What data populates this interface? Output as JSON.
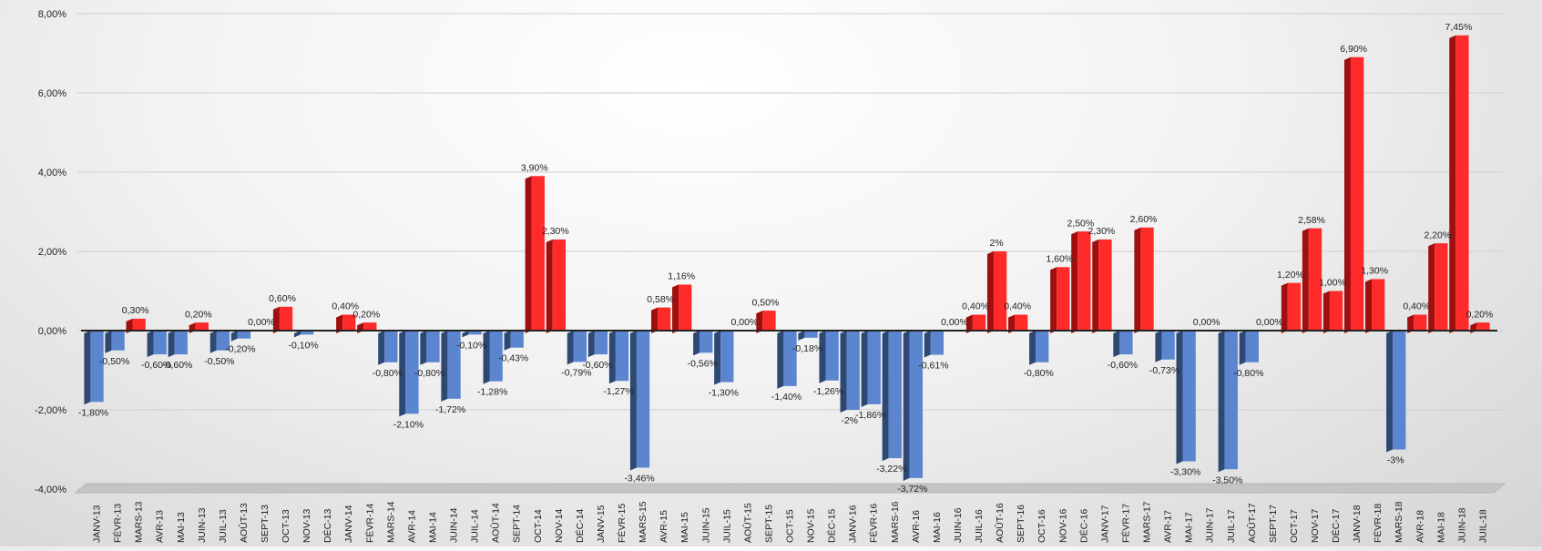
{
  "colors": {
    "positive_front": "#ff2a2a",
    "positive_side": "#a00f0f",
    "negative_front": "#5b86cf",
    "negative_side": "#2c4873",
    "zero_line": "#222222",
    "floor": "#c4c4c4"
  },
  "chart_data": {
    "type": "bar",
    "title": "",
    "xlabel": "",
    "ylabel": "",
    "ylim": [
      -4,
      8
    ],
    "yticks": [
      -4,
      -2,
      0,
      2,
      4,
      6,
      8
    ],
    "ytick_labels": [
      "-4,00%",
      "-2,00%",
      "0,00%",
      "2,00%",
      "4,00%",
      "6,00%",
      "8,00%"
    ],
    "grid": true,
    "categories": [
      "JANV-13",
      "FÉVR-13",
      "MARS-13",
      "AVR-13",
      "MAI-13",
      "JUIN-13",
      "JUIL-13",
      "AOÛT-13",
      "SEPT-13",
      "OCT-13",
      "NOV-13",
      "DÉC-13",
      "JANV-14",
      "FÉVR-14",
      "MARS-14",
      "AVR-14",
      "MAI-14",
      "JUIN-14",
      "JUIL-14",
      "AOÛT-14",
      "SEPT-14",
      "OCT-14",
      "NOV-14",
      "DÉC-14",
      "JANV-15",
      "FÉVR-15",
      "MARS-15",
      "AVR-15",
      "MAI-15",
      "JUIN-15",
      "JUIL-15",
      "AOÛT-15",
      "SEPT-15",
      "OCT-15",
      "NOV-15",
      "DÉC-15",
      "JANV-16",
      "FÉVR-16",
      "MARS-16",
      "AVR-16",
      "MAI-16",
      "JUIN-16",
      "JUIL-16",
      "AOÛT-16",
      "SEPT-16",
      "OCT-16",
      "NOV-16",
      "DÉC-16",
      "JANV-17",
      "FÉVR-17",
      "MARS-17",
      "AVR-17",
      "MAI-17",
      "JUIN-17",
      "JUIL-17",
      "AOÛT-17",
      "SEPT-17",
      "OCT-17",
      "NOV-17",
      "DÉC-17",
      "JANV-18",
      "FÉVR-18",
      "MARS-18",
      "AVR-18",
      "MAI-18",
      "JUIN-18",
      "JUIL-18"
    ],
    "values": [
      -1.8,
      -0.5,
      0.3,
      -0.6,
      -0.6,
      0.2,
      -0.5,
      -0.2,
      0,
      0.6,
      -0.1,
      0,
      0.4,
      0.2,
      -0.8,
      -2.1,
      -0.8,
      -1.72,
      -0.1,
      -1.28,
      -0.43,
      3.9,
      2.3,
      -0.79,
      -0.6,
      -1.27,
      -3.46,
      0.58,
      1.16,
      -0.56,
      -1.3,
      0,
      0.5,
      -1.4,
      -0.18,
      -1.26,
      -2,
      -1.86,
      -3.22,
      -3.72,
      -0.61,
      0,
      0.4,
      2,
      0.4,
      -0.8,
      1.6,
      2.5,
      2.3,
      -0.6,
      2.6,
      -0.73,
      -3.3,
      0,
      -3.5,
      -0.8,
      0,
      1.2,
      2.58,
      1,
      6.9,
      1.3,
      -3,
      0.4,
      2.2,
      7.45,
      0.2
    ],
    "data_labels": [
      "-1,80%",
      "-0,50%",
      "0,30%",
      "-0,60%",
      "-0,60%",
      "0,20%",
      "-0,50%",
      "-0,20%",
      "0,00%",
      "0,60%",
      "-0,10%",
      "",
      "0,40%",
      "0,20%",
      "-0,80%",
      "-2,10%",
      "-0,80%",
      "-1,72%",
      "-0,10%",
      "-1,28%",
      "-0,43%",
      "3,90%",
      "2,30%",
      "-0,79%",
      "-0,60%",
      "-1,27%",
      "-3,46%",
      "0,58%",
      "1,16%",
      "-0,56%",
      "-1,30%",
      "0,00%",
      "0,50%",
      "-1,40%",
      "-0,18%",
      "-1,26%",
      "-2%",
      "-1,86%",
      "-3,22%",
      "-3,72%",
      "-0,61%",
      "0,00%",
      "0,40%",
      "2%",
      "0,40%",
      "-0,80%",
      "1,60%",
      "2,50%",
      "2,30%",
      "-0,60%",
      "2,60%",
      "-0,73%",
      "-3,30%",
      "0,00%",
      "-3,50%",
      "-0,80%",
      "0,00%",
      "1,20%",
      "2,58%",
      "1,00%",
      "6,90%",
      "1,30%",
      "-3%",
      "0,40%",
      "2,20%",
      "7,45%",
      "0,20%"
    ],
    "legend": "none"
  }
}
